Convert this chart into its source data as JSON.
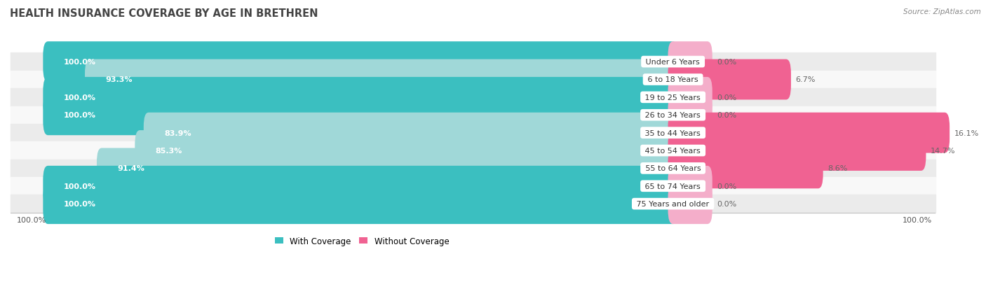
{
  "title": "HEALTH INSURANCE COVERAGE BY AGE IN BRETHREN",
  "source": "Source: ZipAtlas.com",
  "categories": [
    "Under 6 Years",
    "6 to 18 Years",
    "19 to 25 Years",
    "26 to 34 Years",
    "35 to 44 Years",
    "45 to 54 Years",
    "55 to 64 Years",
    "65 to 74 Years",
    "75 Years and older"
  ],
  "with_coverage": [
    100.0,
    93.3,
    100.0,
    100.0,
    83.9,
    85.3,
    91.4,
    100.0,
    100.0
  ],
  "without_coverage": [
    0.0,
    6.7,
    0.0,
    0.0,
    16.1,
    14.7,
    8.6,
    0.0,
    0.0
  ],
  "color_with_dark": "#3BBFC0",
  "color_with_light": "#A0D8D8",
  "color_without_dark": "#F06292",
  "color_without_light": "#F4AECA",
  "row_bg_dark": "#EBEBEB",
  "row_bg_light": "#F8F8F8",
  "title_fontsize": 10.5,
  "label_fontsize": 8.0,
  "legend_fontsize": 8.5,
  "footer_fontsize": 8.0
}
